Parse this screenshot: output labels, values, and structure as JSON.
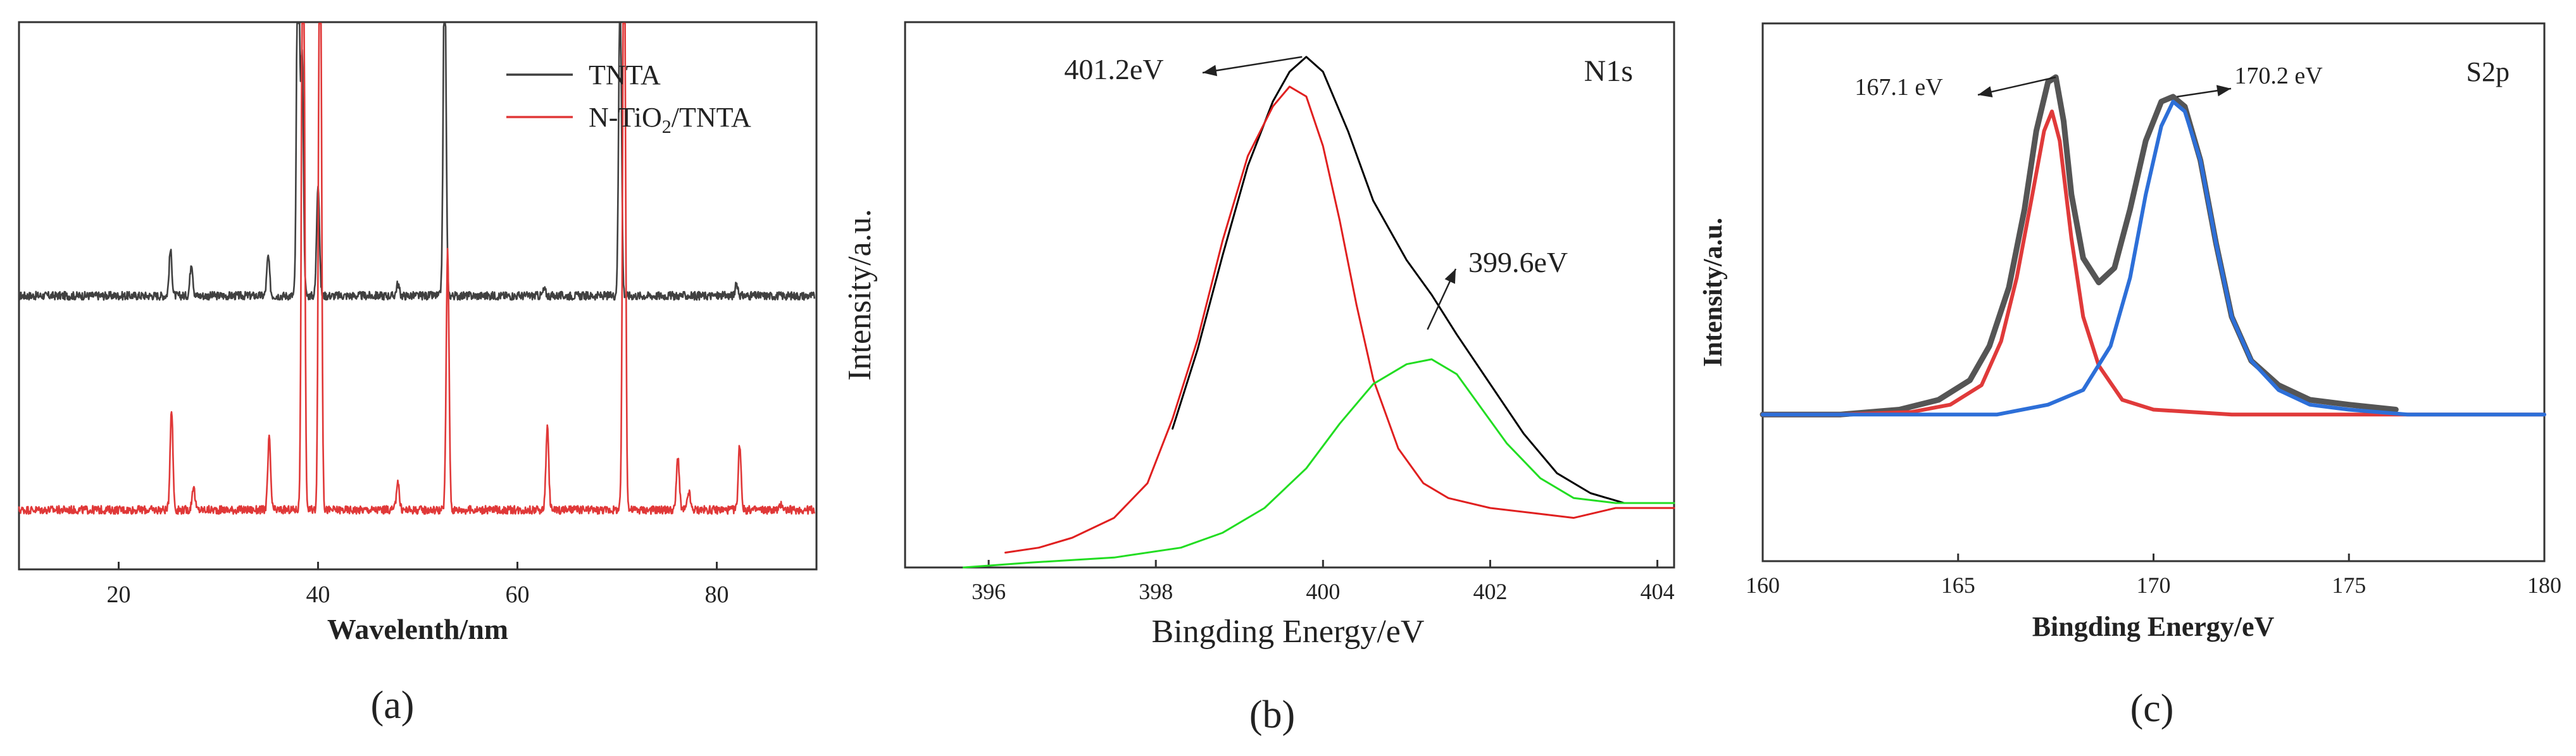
{
  "chart_data": [
    {
      "type": "line",
      "panel_label": "(a)",
      "title": "",
      "xlabel": "Wavelenth/nm",
      "ylabel": "",
      "xlim": [
        10,
        90
      ],
      "ylim": [
        -0.3,
        4.3
      ],
      "x_ticks": [
        20,
        40,
        60,
        80
      ],
      "y_ticks": [],
      "legend_position": "top-right",
      "grid": false,
      "series": [
        {
          "name": "TNTA",
          "color": "#404040",
          "baseline": 2.0,
          "peaks": [
            [
              25.2,
              0.38
            ],
            [
              27.3,
              0.28
            ],
            [
              35.0,
              0.33
            ],
            [
              38.0,
              3.5
            ],
            [
              38.4,
              2.0
            ],
            [
              40.0,
              0.95
            ],
            [
              48.0,
              0.1
            ],
            [
              52.7,
              2.9
            ],
            [
              62.7,
              0.05
            ],
            [
              70.3,
              2.6
            ],
            [
              82.0,
              0.1
            ]
          ]
        },
        {
          "name": "N-TiO2/TNTA",
          "color": "#e03838",
          "baseline": 0.2,
          "peaks": [
            [
              25.3,
              0.85
            ],
            [
              27.5,
              0.2
            ],
            [
              35.1,
              0.6
            ],
            [
              38.5,
              6.2
            ],
            [
              40.2,
              5.8
            ],
            [
              48.0,
              0.25
            ],
            [
              53.0,
              2.2
            ],
            [
              63.0,
              0.7
            ],
            [
              70.7,
              5.3
            ],
            [
              76.1,
              0.45
            ],
            [
              77.2,
              0.15
            ],
            [
              82.3,
              0.55
            ],
            [
              86.5,
              0.05
            ]
          ]
        }
      ]
    },
    {
      "type": "line",
      "panel_label": "(b)",
      "title": "N1s",
      "xlabel": "Bingding Energy/eV",
      "ylabel": "Intensity/a.u.",
      "xlim": [
        395,
        404.2
      ],
      "ylim": [
        0,
        1.1
      ],
      "x_ticks": [
        396,
        398,
        400,
        402,
        404
      ],
      "y_ticks": [],
      "grid": false,
      "annotations": [
        {
          "text": "401.2eV",
          "x": 399.75,
          "y": 1.03
        },
        {
          "text": "399.6eV",
          "x": 401.25,
          "y": 0.48
        }
      ],
      "series": [
        {
          "name": "",
          "color": "#000000",
          "points": [
            [
              398.2,
              0.28
            ],
            [
              398.5,
              0.44
            ],
            [
              398.8,
              0.63
            ],
            [
              399.1,
              0.81
            ],
            [
              399.4,
              0.94
            ],
            [
              399.6,
              1.0
            ],
            [
              399.8,
              1.03
            ],
            [
              400.0,
              1.0
            ],
            [
              400.3,
              0.88
            ],
            [
              400.6,
              0.74
            ],
            [
              401.0,
              0.62
            ],
            [
              401.3,
              0.55
            ],
            [
              401.6,
              0.47
            ],
            [
              402.0,
              0.37
            ],
            [
              402.4,
              0.27
            ],
            [
              402.8,
              0.19
            ],
            [
              403.2,
              0.15
            ],
            [
              403.6,
              0.13
            ]
          ]
        },
        {
          "name": "",
          "color": "#e02020",
          "points": [
            [
              396.2,
              0.03
            ],
            [
              396.6,
              0.04
            ],
            [
              397.0,
              0.06
            ],
            [
              397.5,
              0.1
            ],
            [
              397.9,
              0.17
            ],
            [
              398.2,
              0.3
            ],
            [
              398.5,
              0.46
            ],
            [
              398.8,
              0.66
            ],
            [
              399.1,
              0.83
            ],
            [
              399.4,
              0.93
            ],
            [
              399.6,
              0.97
            ],
            [
              399.8,
              0.95
            ],
            [
              400.0,
              0.85
            ],
            [
              400.2,
              0.7
            ],
            [
              400.4,
              0.53
            ],
            [
              400.6,
              0.38
            ],
            [
              400.9,
              0.24
            ],
            [
              401.2,
              0.17
            ],
            [
              401.5,
              0.14
            ],
            [
              402.0,
              0.12
            ],
            [
              402.5,
              0.11
            ],
            [
              403.0,
              0.1
            ],
            [
              403.5,
              0.12
            ],
            [
              404.2,
              0.12
            ]
          ]
        },
        {
          "name": "",
          "color": "#22dd22",
          "points": [
            [
              395.7,
              0.0
            ],
            [
              396.5,
              0.01
            ],
            [
              397.5,
              0.02
            ],
            [
              398.3,
              0.04
            ],
            [
              398.8,
              0.07
            ],
            [
              399.3,
              0.12
            ],
            [
              399.8,
              0.2
            ],
            [
              400.2,
              0.29
            ],
            [
              400.6,
              0.37
            ],
            [
              401.0,
              0.41
            ],
            [
              401.3,
              0.42
            ],
            [
              401.6,
              0.39
            ],
            [
              401.9,
              0.32
            ],
            [
              402.2,
              0.25
            ],
            [
              402.6,
              0.18
            ],
            [
              403.0,
              0.14
            ],
            [
              403.5,
              0.13
            ],
            [
              404.2,
              0.13
            ]
          ]
        }
      ]
    },
    {
      "type": "line",
      "panel_label": "(c)",
      "title": "S2p",
      "xlabel": "Bingding Energy/eV",
      "ylabel": "Intensity/a.u.",
      "xlim": [
        160,
        180
      ],
      "ylim": [
        0,
        1.1
      ],
      "x_ticks": [
        160,
        165,
        170,
        175,
        180
      ],
      "y_ticks": [],
      "grid": false,
      "annotations": [
        {
          "text": "167.1 eV",
          "x": 167.5,
          "y": 0.99
        },
        {
          "text": "170.2 eV",
          "x": 170.6,
          "y": 0.95
        }
      ],
      "series": [
        {
          "name": "",
          "color": "#555555",
          "points": [
            [
              160.0,
              0.3
            ],
            [
              162.0,
              0.3
            ],
            [
              163.5,
              0.31
            ],
            [
              164.5,
              0.33
            ],
            [
              165.3,
              0.37
            ],
            [
              165.8,
              0.44
            ],
            [
              166.3,
              0.56
            ],
            [
              166.7,
              0.72
            ],
            [
              167.0,
              0.88
            ],
            [
              167.3,
              0.98
            ],
            [
              167.5,
              0.99
            ],
            [
              167.7,
              0.9
            ],
            [
              167.9,
              0.75
            ],
            [
              168.2,
              0.62
            ],
            [
              168.6,
              0.57
            ],
            [
              169.0,
              0.6
            ],
            [
              169.4,
              0.72
            ],
            [
              169.8,
              0.86
            ],
            [
              170.2,
              0.94
            ],
            [
              170.5,
              0.95
            ],
            [
              170.8,
              0.93
            ],
            [
              171.2,
              0.82
            ],
            [
              171.6,
              0.65
            ],
            [
              172.0,
              0.5
            ],
            [
              172.5,
              0.41
            ],
            [
              173.2,
              0.36
            ],
            [
              174.0,
              0.33
            ],
            [
              175.0,
              0.32
            ],
            [
              176.2,
              0.31
            ]
          ]
        },
        {
          "name": "",
          "color": "#e03a3a",
          "points": [
            [
              160.0,
              0.3
            ],
            [
              162.0,
              0.3
            ],
            [
              163.8,
              0.305
            ],
            [
              164.8,
              0.32
            ],
            [
              165.6,
              0.36
            ],
            [
              166.1,
              0.45
            ],
            [
              166.5,
              0.58
            ],
            [
              166.9,
              0.75
            ],
            [
              167.2,
              0.88
            ],
            [
              167.4,
              0.92
            ],
            [
              167.6,
              0.86
            ],
            [
              167.9,
              0.66
            ],
            [
              168.2,
              0.5
            ],
            [
              168.6,
              0.4
            ],
            [
              169.2,
              0.33
            ],
            [
              170.0,
              0.31
            ],
            [
              172.0,
              0.3
            ],
            [
              176.0,
              0.3
            ],
            [
              180.0,
              0.3
            ]
          ]
        },
        {
          "name": "",
          "color": "#2d6fd8",
          "points": [
            [
              160.0,
              0.3
            ],
            [
              163.0,
              0.3
            ],
            [
              166.0,
              0.3
            ],
            [
              167.3,
              0.32
            ],
            [
              168.2,
              0.35
            ],
            [
              168.9,
              0.44
            ],
            [
              169.4,
              0.58
            ],
            [
              169.8,
              0.75
            ],
            [
              170.2,
              0.89
            ],
            [
              170.5,
              0.94
            ],
            [
              170.8,
              0.92
            ],
            [
              171.2,
              0.82
            ],
            [
              171.6,
              0.65
            ],
            [
              172.0,
              0.5
            ],
            [
              172.5,
              0.41
            ],
            [
              173.2,
              0.35
            ],
            [
              174.0,
              0.32
            ],
            [
              175.0,
              0.31
            ],
            [
              176.5,
              0.3
            ],
            [
              180.0,
              0.3
            ]
          ]
        }
      ]
    }
  ]
}
